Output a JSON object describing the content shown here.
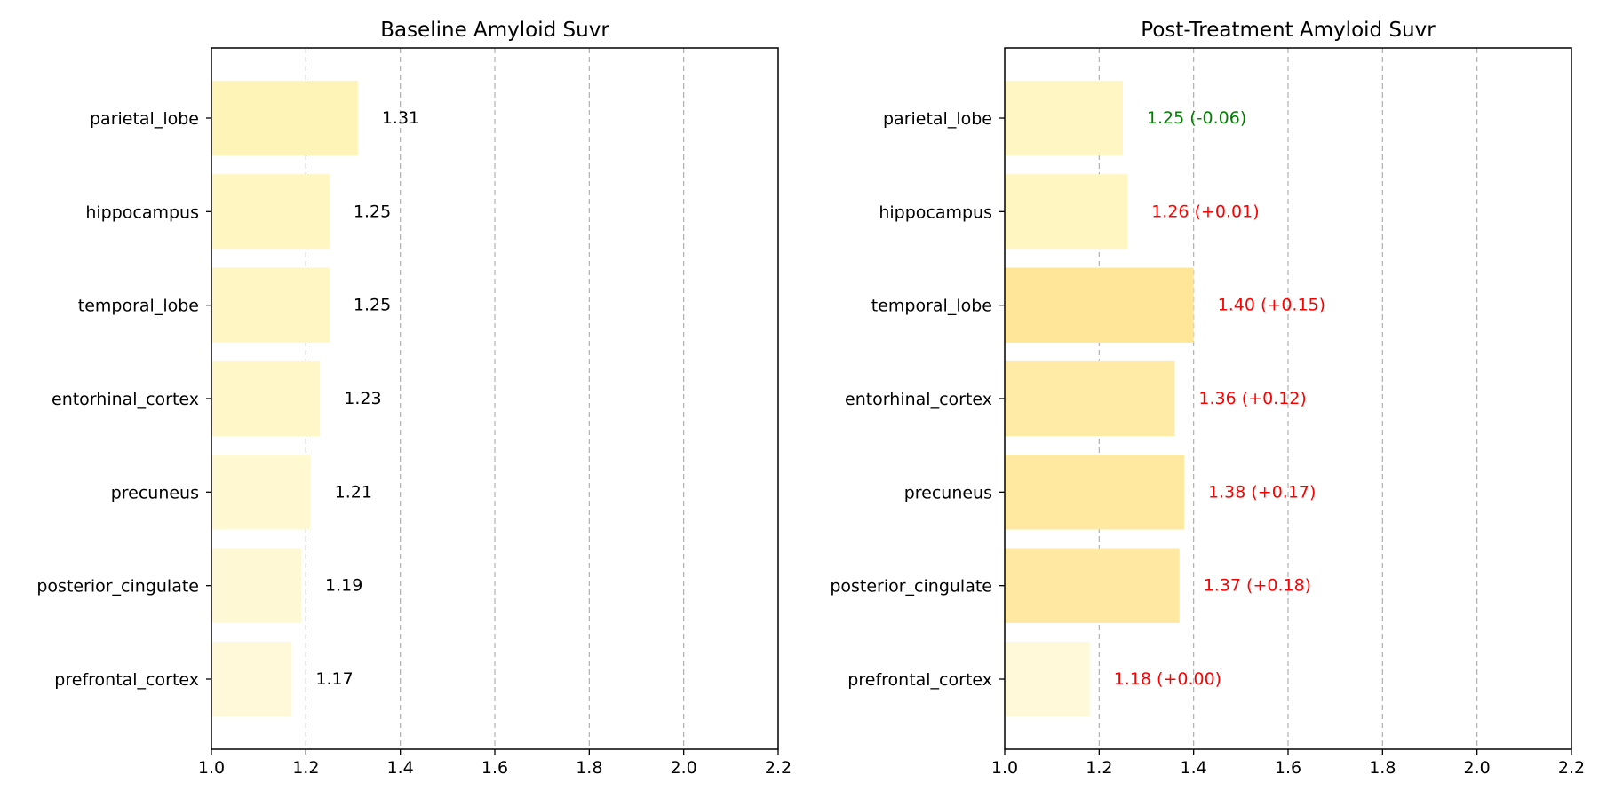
{
  "chart_data": [
    {
      "type": "bar",
      "orientation": "horizontal",
      "title": "Baseline Amyloid Suvr",
      "xlabel": "",
      "ylabel": "",
      "xlim": [
        1.0,
        2.2
      ],
      "xticks": [
        "1.0",
        "1.2",
        "1.4",
        "1.6",
        "1.8",
        "2.0",
        "2.2"
      ],
      "grid": "vertical dashed at x ticks",
      "categories": [
        "parietal_lobe",
        "hippocampus",
        "temporal_lobe",
        "entorhinal_cortex",
        "precuneus",
        "posterior_cingulate",
        "prefrontal_cortex"
      ],
      "values": [
        1.31,
        1.25,
        1.25,
        1.23,
        1.21,
        1.19,
        1.17
      ],
      "value_labels": [
        "1.31",
        "1.25",
        "1.25",
        "1.23",
        "1.21",
        "1.19",
        "1.17"
      ],
      "label_colors": [
        "#000000",
        "#000000",
        "#000000",
        "#000000",
        "#000000",
        "#000000",
        "#000000"
      ],
      "bar_colors": [
        "#fff4b8",
        "#fff6c2",
        "#fff6c4",
        "#fff7c8",
        "#fff8d0",
        "#fff8d4",
        "#fff9da"
      ]
    },
    {
      "type": "bar",
      "orientation": "horizontal",
      "title": "Post-Treatment Amyloid Suvr",
      "xlabel": "",
      "ylabel": "",
      "xlim": [
        1.0,
        2.2
      ],
      "xticks": [
        "1.0",
        "1.2",
        "1.4",
        "1.6",
        "1.8",
        "2.0",
        "2.2"
      ],
      "grid": "vertical dashed at x ticks",
      "categories": [
        "parietal_lobe",
        "hippocampus",
        "temporal_lobe",
        "entorhinal_cortex",
        "precuneus",
        "posterior_cingulate",
        "prefrontal_cortex"
      ],
      "values": [
        1.25,
        1.26,
        1.4,
        1.36,
        1.38,
        1.37,
        1.18
      ],
      "value_labels": [
        "1.25 (-0.06)",
        "1.26 (+0.01)",
        "1.40 (+0.15)",
        "1.36 (+0.12)",
        "1.38 (+0.17)",
        "1.37 (+0.18)",
        "1.18 (+0.00)"
      ],
      "label_colors": [
        "#008000",
        "#ff0000",
        "#ff0000",
        "#ff0000",
        "#ff0000",
        "#ff0000",
        "#ff0000"
      ],
      "bar_colors": [
        "#fff6c4",
        "#fff6c2",
        "#ffe699",
        "#ffeaa6",
        "#ffe89f",
        "#ffe8a2",
        "#fff9da"
      ]
    }
  ]
}
